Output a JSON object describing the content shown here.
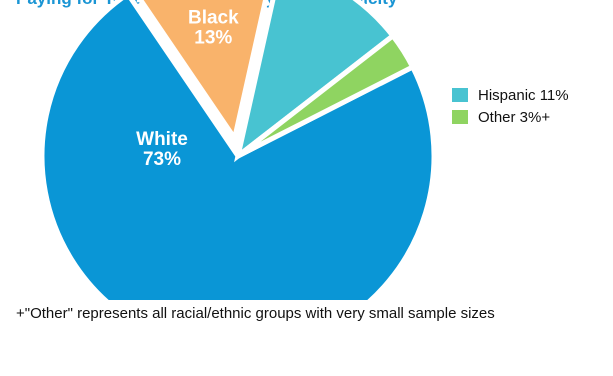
{
  "header": {
    "title_fragment": "Paying for Tobacco Products by Race/Ethnicity"
  },
  "chart_data": {
    "type": "pie",
    "slices": [
      {
        "name": "White",
        "value": 73,
        "label": "White",
        "value_label": "73%",
        "color": "#0a96d6",
        "label_position": "inside"
      },
      {
        "name": "Black",
        "value": 13,
        "label": "Black",
        "value_label": "13%",
        "color": "#f9b36b",
        "label_position": "inside",
        "exploded": true
      },
      {
        "name": "Hispanic",
        "value": 11,
        "legend_label": "Hispanic 11%",
        "color": "#48c3d1",
        "label_position": "legend"
      },
      {
        "name": "Other",
        "value": 3,
        "legend_label": "Other 3%+",
        "color": "#8fd461",
        "label_position": "legend"
      }
    ],
    "legend": {
      "placement": "right"
    }
  },
  "footnote": "+\"Other\" represents all racial/ethnic groups with very small sample sizes"
}
